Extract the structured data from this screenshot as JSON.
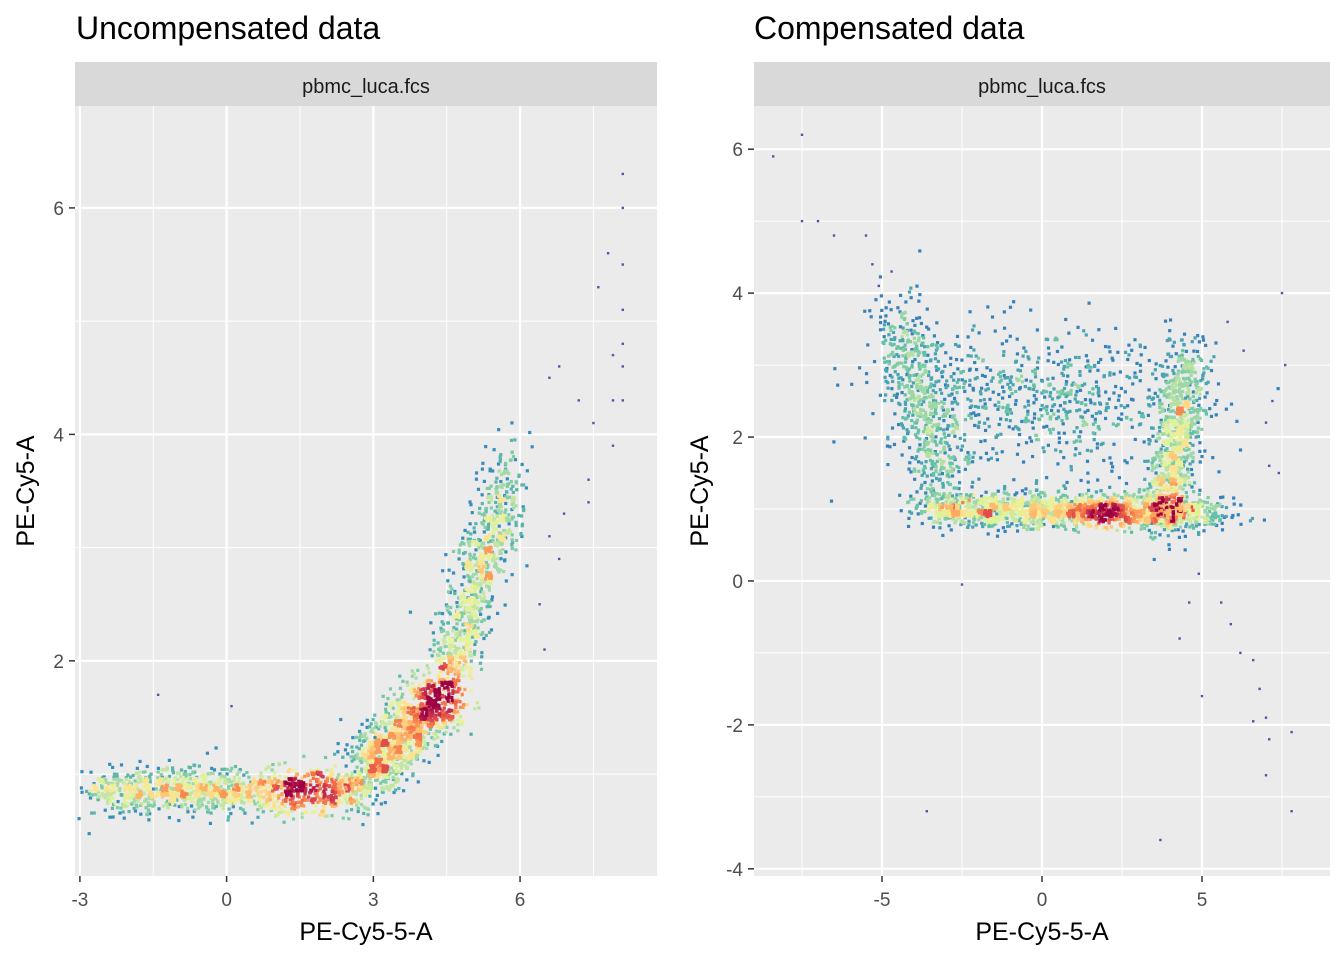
{
  "chart_data": [
    {
      "type": "hexbin",
      "title": "Uncompensated data",
      "facet_label": "pbmc_luca.fcs",
      "xlabel": "PE-Cy5-5-A",
      "ylabel": "PE-Cy5-A",
      "xlim": [
        -3.1,
        8.8
      ],
      "ylim": [
        0.1,
        6.9
      ],
      "xticks": [
        -3,
        0,
        3,
        6
      ],
      "yticks": [
        2,
        4,
        6
      ],
      "grid": true,
      "colormap": [
        "#5E4FA2",
        "#3288BD",
        "#66C2A5",
        "#ABDDA4",
        "#E6F598",
        "#FEE08B",
        "#FDAE61",
        "#F46D43",
        "#D53E4F",
        "#9E0142"
      ],
      "density_segments": [
        {
          "from": [
            -2.6,
            0.85
          ],
          "to": [
            2.6,
            0.85
          ],
          "spread": [
            0.35,
            0.1
          ],
          "count": 1300,
          "peak": [
            1.6,
            0.87
          ]
        },
        {
          "from": [
            2.8,
            1.0
          ],
          "to": [
            4.4,
            1.7
          ],
          "spread": [
            0.25,
            0.15
          ],
          "count": 1100,
          "peak": [
            4.5,
            1.7
          ]
        },
        {
          "from": [
            4.4,
            1.7
          ],
          "to": [
            5.8,
            3.6
          ],
          "spread": [
            0.22,
            0.22
          ],
          "count": 900,
          "peak": [
            4.5,
            1.7
          ]
        }
      ],
      "outlier_points": [
        [
          8.1,
          6.3
        ],
        [
          8.1,
          6.0
        ],
        [
          8.1,
          5.5
        ],
        [
          8.1,
          5.1
        ],
        [
          8.1,
          4.8
        ],
        [
          8.1,
          4.6
        ],
        [
          8.1,
          4.3
        ],
        [
          7.8,
          5.6
        ],
        [
          7.6,
          5.3
        ],
        [
          7.9,
          4.7
        ],
        [
          7.9,
          4.3
        ],
        [
          7.9,
          3.9
        ],
        [
          7.5,
          4.1
        ],
        [
          7.4,
          3.6
        ],
        [
          7.4,
          3.4
        ],
        [
          7.2,
          4.3
        ],
        [
          6.9,
          3.3
        ],
        [
          6.8,
          2.9
        ],
        [
          6.6,
          3.1
        ],
        [
          6.4,
          2.5
        ],
        [
          6.5,
          2.1
        ],
        [
          6.8,
          4.6
        ],
        [
          6.6,
          4.5
        ],
        [
          -1.4,
          1.7
        ],
        [
          0.1,
          1.6
        ]
      ]
    },
    {
      "type": "hexbin",
      "title": "Compensated data",
      "facet_label": "pbmc_luca.fcs",
      "xlabel": "PE-Cy5-5-A",
      "ylabel": "PE-Cy5-A",
      "xlim": [
        -9.0,
        9.0
      ],
      "ylim": [
        -4.1,
        6.6
      ],
      "xticks": [
        -5,
        0,
        5
      ],
      "yticks": [
        -4,
        -2,
        0,
        2,
        4,
        6
      ],
      "grid": true,
      "colormap": [
        "#5E4FA2",
        "#3288BD",
        "#66C2A5",
        "#ABDDA4",
        "#E6F598",
        "#FEE08B",
        "#FDAE61",
        "#F46D43",
        "#D53E4F",
        "#9E0142"
      ],
      "density_segments": [
        {
          "from": [
            -3.3,
            1.0
          ],
          "to": [
            5.3,
            0.95
          ],
          "spread": [
            0.6,
            0.12
          ],
          "count": 1700,
          "peak": [
            2.0,
            0.88
          ]
        },
        {
          "from": [
            3.8,
            1.0
          ],
          "to": [
            4.6,
            3.0
          ],
          "spread": [
            0.35,
            0.3
          ],
          "count": 800,
          "peak": [
            4.2,
            1.0
          ]
        },
        {
          "from": [
            -4.5,
            3.5
          ],
          "to": [
            -3.0,
            1.4
          ],
          "spread": [
            0.45,
            0.35
          ],
          "count": 600,
          "peak": [
            -2.0,
            0.98
          ]
        },
        {
          "from": [
            -2.5,
            2.5
          ],
          "to": [
            3.0,
            2.5
          ],
          "spread": [
            1.8,
            0.5
          ],
          "count": 700,
          "peak": [
            4.2,
            1.0
          ]
        }
      ],
      "outlier_points": [
        [
          -8.4,
          5.9
        ],
        [
          -7.5,
          6.2
        ],
        [
          -7.5,
          5.0
        ],
        [
          -7.0,
          5.0
        ],
        [
          -6.5,
          4.8
        ],
        [
          -5.5,
          4.8
        ],
        [
          -5.3,
          4.4
        ],
        [
          -5.1,
          4.1
        ],
        [
          -4.7,
          4.3
        ],
        [
          -2.5,
          -0.05
        ],
        [
          -3.6,
          -3.2
        ],
        [
          3.7,
          -3.6
        ],
        [
          5.0,
          -1.6
        ],
        [
          5.6,
          -0.3
        ],
        [
          5.9,
          -0.6
        ],
        [
          6.2,
          -1.0
        ],
        [
          6.6,
          -1.1
        ],
        [
          6.8,
          -1.5
        ],
        [
          6.6,
          -1.95
        ],
        [
          7.0,
          -1.9
        ],
        [
          7.1,
          -2.2
        ],
        [
          7.8,
          -2.1
        ],
        [
          7.0,
          -2.7
        ],
        [
          7.8,
          -3.2
        ],
        [
          7.5,
          4.0
        ],
        [
          7.1,
          1.6
        ],
        [
          7.4,
          1.5
        ],
        [
          7.0,
          2.2
        ],
        [
          7.2,
          2.5
        ],
        [
          7.6,
          3.0
        ],
        [
          6.3,
          3.2
        ],
        [
          5.8,
          3.6
        ],
        [
          4.6,
          -0.3
        ],
        [
          4.3,
          -0.8
        ],
        [
          4.9,
          0.1
        ]
      ]
    }
  ]
}
